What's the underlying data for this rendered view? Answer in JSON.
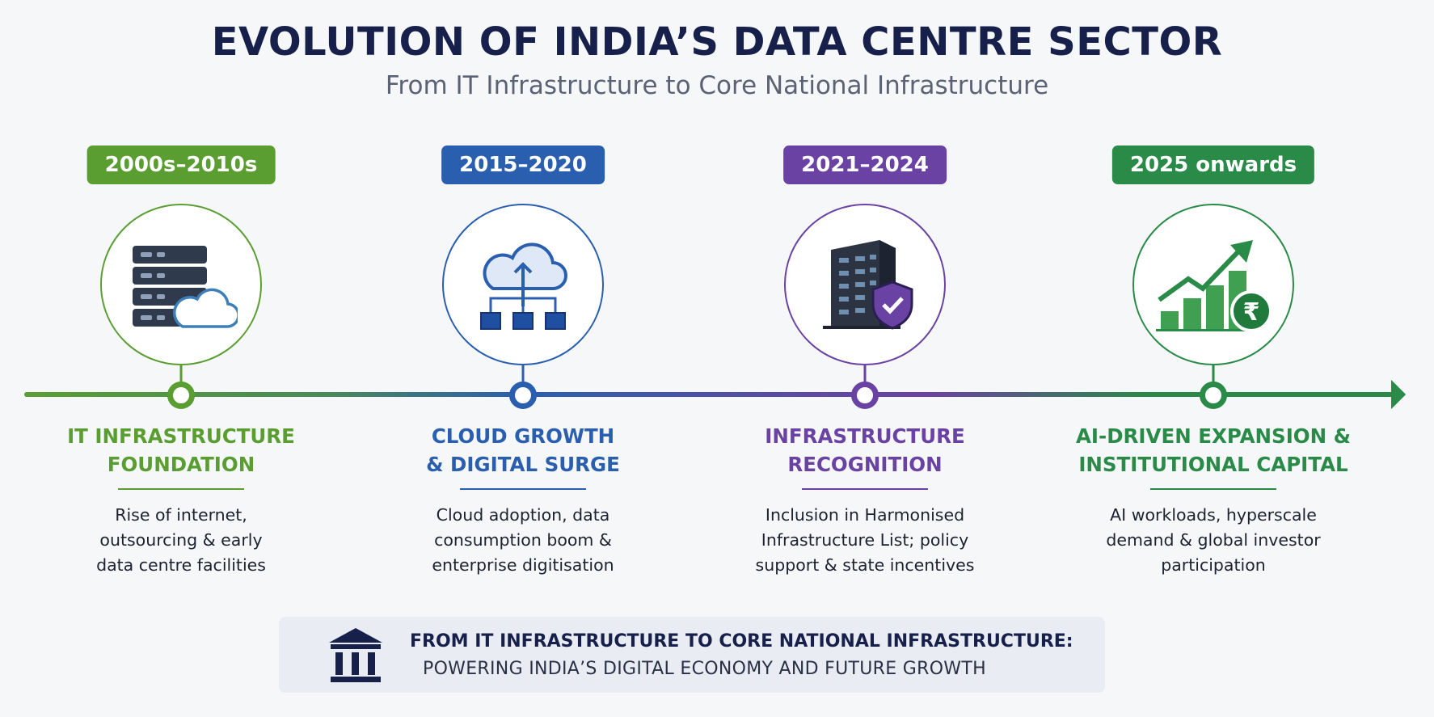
{
  "header": {
    "title": "EVOLUTION OF INDIA’S DATA CENTRE SECTOR",
    "subtitle": "From IT Infrastructure to Core National Infrastructure"
  },
  "stages": [
    {
      "period": "2000s–2010s",
      "title_line1": "IT INFRASTRUCTURE",
      "title_line2": "FOUNDATION",
      "desc": [
        "Rise of internet,",
        "outsourcing & early",
        "data centre facilities"
      ],
      "color": "#5a9e32",
      "icon": "server-cloud-icon"
    },
    {
      "period": "2015–2020",
      "title_line1": "CLOUD GROWTH",
      "title_line2": "& DIGITAL SURGE",
      "desc": [
        "Cloud adoption, data",
        "consumption boom &",
        "enterprise digitisation"
      ],
      "color": "#2a5fb0",
      "icon": "cloud-network-icon"
    },
    {
      "period": "2021–2024",
      "title_line1": "INFRASTRUCTURE",
      "title_line2": "RECOGNITION",
      "desc": [
        "Inclusion in Harmonised",
        "Infrastructure List; policy",
        "support & state incentives"
      ],
      "color": "#6a42a3",
      "icon": "building-shield-icon"
    },
    {
      "period": "2025 onwards",
      "title_line1": "AI-DRIVEN EXPANSION &",
      "title_line2": "INSTITUTIONAL CAPITAL",
      "desc": [
        "AI workloads, hyperscale",
        "demand & global investor",
        "participation"
      ],
      "color": "#2a8a47",
      "icon": "growth-chart-rupee-icon"
    }
  ],
  "banner": {
    "line1": "FROM IT INFRASTRUCTURE TO CORE NATIONAL INFRASTRUCTURE:",
    "line2": "POWERING INDIA’S DIGITAL ECONOMY AND FUTURE GROWTH",
    "icon": "institution-building-icon"
  }
}
